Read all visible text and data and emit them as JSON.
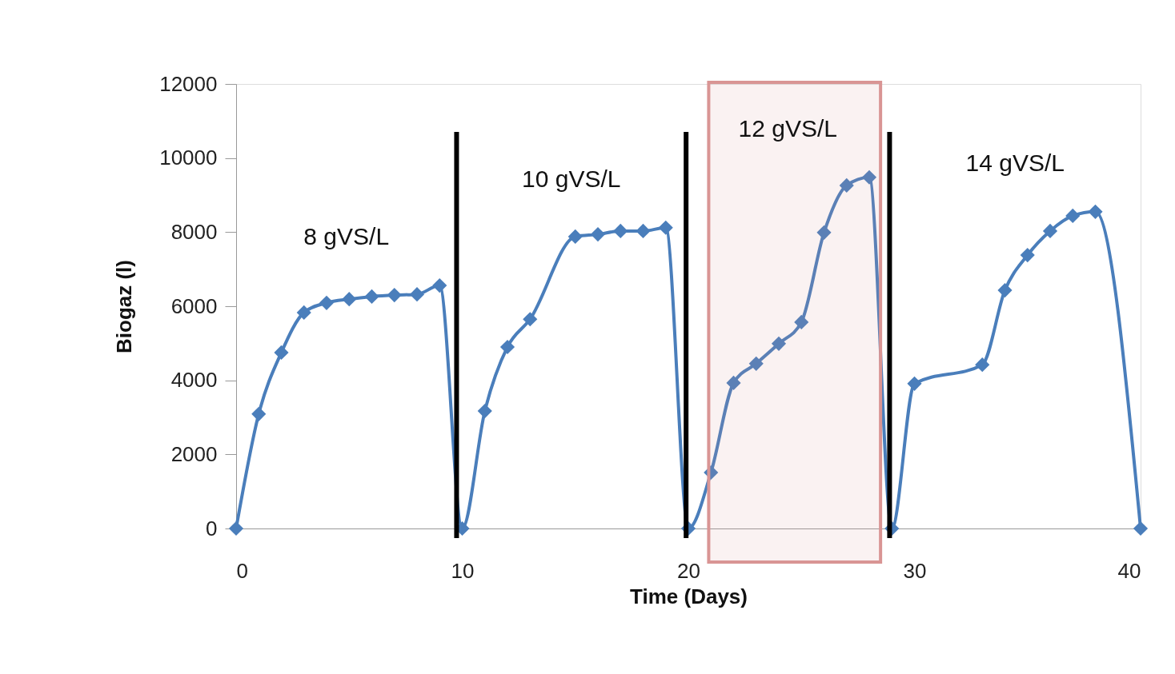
{
  "chart_data": {
    "type": "line",
    "xlabel": "Time (Days)",
    "ylabel": "Biogaz (l)",
    "x": [
      0,
      1,
      2,
      3,
      4,
      5,
      6,
      7,
      8,
      9,
      10,
      11,
      12,
      13,
      15,
      16,
      17,
      18,
      19,
      20,
      21,
      22,
      23,
      24,
      25,
      26,
      27,
      28,
      29,
      30,
      33,
      34,
      35,
      36,
      37,
      38,
      40
    ],
    "series": [
      {
        "color": "#4a7ebb",
        "values": [
          0,
          3090,
          4750,
          5830,
          6090,
          6190,
          6260,
          6300,
          6320,
          6560,
          0,
          3170,
          4900,
          5650,
          7880,
          7940,
          8030,
          8030,
          8120,
          0,
          1510,
          3930,
          4450,
          4990,
          5570,
          7990,
          9260,
          9480,
          0,
          3910,
          4420,
          6430,
          7380,
          8030,
          8440,
          8550,
          0
        ]
      }
    ],
    "xlim": [
      0,
      40
    ],
    "xticks": [
      0,
      10,
      20,
      30,
      40
    ],
    "ylim": [
      0,
      12000
    ],
    "yticks": [
      0,
      2000,
      4000,
      6000,
      8000,
      10000,
      12000
    ],
    "grid": false,
    "marker": "diamond",
    "line_style": "solid",
    "legend": false,
    "ref_lines": [
      {
        "axis": "x",
        "value": 9.75,
        "color": "#000000"
      },
      {
        "axis": "x",
        "value": 19.9,
        "color": "#000000"
      },
      {
        "axis": "x",
        "value": 28.9,
        "color": "#000000"
      }
    ],
    "bands": [
      {
        "axis": "x",
        "from": 20.9,
        "to": 28.5,
        "color": "#d99594"
      }
    ],
    "annotations": [
      "8 gVS/L",
      "10 gVS/L",
      "12 gVS/L",
      "14 gVS/L"
    ]
  }
}
